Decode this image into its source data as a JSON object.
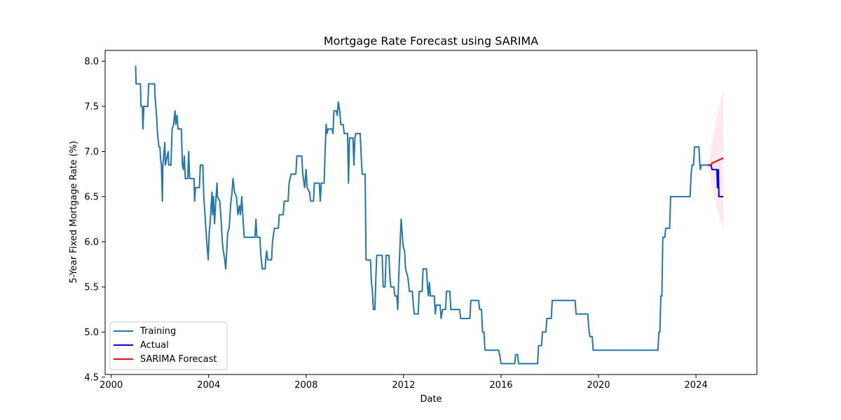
{
  "chart_data": {
    "type": "line",
    "title": "Mortgage Rate Forecast using SARIMA",
    "xlabel": "Date",
    "ylabel": "5-Year Fixed Mortgage Rate (%)",
    "xlim": [
      1999.75,
      2026.5
    ],
    "ylim": [
      4.53,
      8.12
    ],
    "x_ticks": [
      2000,
      2004,
      2008,
      2012,
      2016,
      2020,
      2024
    ],
    "y_ticks": [
      4.5,
      5.0,
      5.5,
      6.0,
      6.5,
      7.0,
      7.5,
      8.0
    ],
    "grid": false,
    "legend_position": "lower-left",
    "series": [
      {
        "name": "Training",
        "color": "#1f77b4",
        "points": [
          [
            2001.0,
            7.95
          ],
          [
            2001.02,
            7.75
          ],
          [
            2001.2,
            7.75
          ],
          [
            2001.22,
            7.5
          ],
          [
            2001.28,
            7.5
          ],
          [
            2001.3,
            7.25
          ],
          [
            2001.34,
            7.5
          ],
          [
            2001.5,
            7.5
          ],
          [
            2001.54,
            7.75
          ],
          [
            2001.78,
            7.75
          ],
          [
            2001.8,
            7.6
          ],
          [
            2001.86,
            7.4
          ],
          [
            2001.9,
            7.2
          ],
          [
            2001.96,
            7.05
          ],
          [
            2002.0,
            7.05
          ],
          [
            2002.03,
            6.9
          ],
          [
            2002.06,
            6.85
          ],
          [
            2002.1,
            6.45
          ],
          [
            2002.12,
            6.85
          ],
          [
            2002.2,
            7.1
          ],
          [
            2002.22,
            6.85
          ],
          [
            2002.34,
            7.0
          ],
          [
            2002.36,
            6.85
          ],
          [
            2002.45,
            6.85
          ],
          [
            2002.5,
            7.25
          ],
          [
            2002.56,
            7.3
          ],
          [
            2002.62,
            7.45
          ],
          [
            2002.65,
            7.3
          ],
          [
            2002.7,
            7.4
          ],
          [
            2002.74,
            7.25
          ],
          [
            2002.88,
            7.25
          ],
          [
            2002.92,
            6.85
          ],
          [
            2002.96,
            6.8
          ],
          [
            2003.0,
            6.95
          ],
          [
            2003.04,
            6.7
          ],
          [
            2003.14,
            6.7
          ],
          [
            2003.18,
            7.0
          ],
          [
            2003.22,
            6.7
          ],
          [
            2003.4,
            6.7
          ],
          [
            2003.42,
            6.45
          ],
          [
            2003.46,
            6.6
          ],
          [
            2003.62,
            6.6
          ],
          [
            2003.66,
            6.85
          ],
          [
            2003.76,
            6.85
          ],
          [
            2003.8,
            6.5
          ],
          [
            2003.86,
            6.25
          ],
          [
            2003.92,
            6.0
          ],
          [
            2003.98,
            5.8
          ],
          [
            2004.02,
            6.1
          ],
          [
            2004.06,
            6.2
          ],
          [
            2004.1,
            6.4
          ],
          [
            2004.14,
            6.55
          ],
          [
            2004.16,
            6.3
          ],
          [
            2004.2,
            6.5
          ],
          [
            2004.24,
            6.2
          ],
          [
            2004.28,
            6.4
          ],
          [
            2004.34,
            6.65
          ],
          [
            2004.36,
            6.5
          ],
          [
            2004.46,
            6.45
          ],
          [
            2004.52,
            6.2
          ],
          [
            2004.56,
            6.0
          ],
          [
            2004.6,
            5.9
          ],
          [
            2004.66,
            5.8
          ],
          [
            2004.7,
            5.7
          ],
          [
            2004.74,
            5.9
          ],
          [
            2004.78,
            6.1
          ],
          [
            2004.84,
            6.15
          ],
          [
            2004.9,
            6.4
          ],
          [
            2004.96,
            6.55
          ],
          [
            2005.0,
            6.7
          ],
          [
            2005.06,
            6.55
          ],
          [
            2005.14,
            6.5
          ],
          [
            2005.2,
            6.3
          ],
          [
            2005.26,
            6.4
          ],
          [
            2005.3,
            6.3
          ],
          [
            2005.36,
            6.5
          ],
          [
            2005.4,
            6.3
          ],
          [
            2005.46,
            6.05
          ],
          [
            2005.9,
            6.05
          ],
          [
            2005.94,
            6.25
          ],
          [
            2005.98,
            6.05
          ],
          [
            2006.1,
            6.05
          ],
          [
            2006.14,
            5.85
          ],
          [
            2006.2,
            5.7
          ],
          [
            2006.32,
            5.7
          ],
          [
            2006.34,
            5.8
          ],
          [
            2006.38,
            5.9
          ],
          [
            2006.42,
            5.8
          ],
          [
            2006.58,
            5.8
          ],
          [
            2006.62,
            6.0
          ],
          [
            2006.7,
            6.15
          ],
          [
            2006.86,
            6.15
          ],
          [
            2006.9,
            6.3
          ],
          [
            2007.06,
            6.3
          ],
          [
            2007.1,
            6.45
          ],
          [
            2007.26,
            6.45
          ],
          [
            2007.3,
            6.65
          ],
          [
            2007.38,
            6.75
          ],
          [
            2007.58,
            6.75
          ],
          [
            2007.62,
            6.95
          ],
          [
            2007.82,
            6.95
          ],
          [
            2007.86,
            6.75
          ],
          [
            2007.94,
            6.6
          ],
          [
            2008.0,
            6.8
          ],
          [
            2008.04,
            6.6
          ],
          [
            2008.14,
            6.55
          ],
          [
            2008.18,
            6.45
          ],
          [
            2008.3,
            6.45
          ],
          [
            2008.34,
            6.65
          ],
          [
            2008.54,
            6.65
          ],
          [
            2008.58,
            6.45
          ],
          [
            2008.62,
            6.65
          ],
          [
            2008.74,
            6.65
          ],
          [
            2008.78,
            7.0
          ],
          [
            2008.82,
            7.3
          ],
          [
            2008.86,
            7.2
          ],
          [
            2008.9,
            7.25
          ],
          [
            2009.06,
            7.25
          ],
          [
            2009.1,
            7.2
          ],
          [
            2009.14,
            7.45
          ],
          [
            2009.24,
            7.45
          ],
          [
            2009.28,
            7.4
          ],
          [
            2009.32,
            7.55
          ],
          [
            2009.38,
            7.45
          ],
          [
            2009.42,
            7.3
          ],
          [
            2009.52,
            7.3
          ],
          [
            2009.56,
            7.2
          ],
          [
            2009.7,
            7.2
          ],
          [
            2009.74,
            6.65
          ],
          [
            2009.78,
            7.15
          ],
          [
            2009.92,
            7.15
          ],
          [
            2009.96,
            6.85
          ],
          [
            2010.0,
            7.15
          ],
          [
            2010.04,
            7.2
          ],
          [
            2010.22,
            7.2
          ],
          [
            2010.26,
            6.95
          ],
          [
            2010.3,
            6.75
          ],
          [
            2010.42,
            6.75
          ],
          [
            2010.46,
            5.8
          ],
          [
            2010.64,
            5.8
          ],
          [
            2010.68,
            5.55
          ],
          [
            2010.72,
            5.45
          ],
          [
            2010.76,
            5.25
          ],
          [
            2010.82,
            5.25
          ],
          [
            2010.86,
            5.6
          ],
          [
            2010.9,
            5.85
          ],
          [
            2011.12,
            5.85
          ],
          [
            2011.16,
            5.5
          ],
          [
            2011.24,
            5.5
          ],
          [
            2011.28,
            5.85
          ],
          [
            2011.4,
            5.85
          ],
          [
            2011.44,
            5.6
          ],
          [
            2011.48,
            5.5
          ],
          [
            2011.6,
            5.5
          ],
          [
            2011.64,
            5.4
          ],
          [
            2011.72,
            5.4
          ],
          [
            2011.76,
            5.25
          ],
          [
            2011.8,
            5.6
          ],
          [
            2011.86,
            6.0
          ],
          [
            2011.9,
            6.25
          ],
          [
            2011.94,
            6.1
          ],
          [
            2011.98,
            5.95
          ],
          [
            2012.04,
            5.9
          ],
          [
            2012.08,
            5.7
          ],
          [
            2012.18,
            5.6
          ],
          [
            2012.24,
            5.45
          ],
          [
            2012.36,
            5.45
          ],
          [
            2012.4,
            5.3
          ],
          [
            2012.44,
            5.2
          ],
          [
            2012.6,
            5.2
          ],
          [
            2012.64,
            5.45
          ],
          [
            2012.76,
            5.45
          ],
          [
            2012.8,
            5.7
          ],
          [
            2012.94,
            5.7
          ],
          [
            2012.98,
            5.5
          ],
          [
            2013.02,
            5.4
          ],
          [
            2013.06,
            5.55
          ],
          [
            2013.1,
            5.4
          ],
          [
            2013.26,
            5.4
          ],
          [
            2013.3,
            5.2
          ],
          [
            2013.34,
            5.3
          ],
          [
            2013.5,
            5.3
          ],
          [
            2013.54,
            5.15
          ],
          [
            2013.6,
            5.25
          ],
          [
            2013.72,
            5.25
          ],
          [
            2013.76,
            5.45
          ],
          [
            2013.9,
            5.45
          ],
          [
            2013.94,
            5.25
          ],
          [
            2014.0,
            5.25
          ],
          [
            2014.3,
            5.25
          ],
          [
            2014.34,
            5.15
          ],
          [
            2014.72,
            5.15
          ],
          [
            2014.76,
            5.35
          ],
          [
            2015.08,
            5.35
          ],
          [
            2015.12,
            5.25
          ],
          [
            2015.2,
            5.25
          ],
          [
            2015.24,
            5.0
          ],
          [
            2015.3,
            5.0
          ],
          [
            2015.34,
            4.8
          ],
          [
            2015.9,
            4.8
          ],
          [
            2015.94,
            4.75
          ],
          [
            2016.0,
            4.65
          ],
          [
            2016.56,
            4.65
          ],
          [
            2016.6,
            4.75
          ],
          [
            2016.68,
            4.75
          ],
          [
            2016.72,
            4.65
          ],
          [
            2017.5,
            4.65
          ],
          [
            2017.54,
            4.85
          ],
          [
            2017.66,
            4.85
          ],
          [
            2017.7,
            5.0
          ],
          [
            2017.84,
            5.0
          ],
          [
            2017.88,
            5.15
          ],
          [
            2018.06,
            5.15
          ],
          [
            2018.1,
            5.35
          ],
          [
            2019.04,
            5.35
          ],
          [
            2019.08,
            5.2
          ],
          [
            2019.56,
            5.2
          ],
          [
            2019.6,
            5.05
          ],
          [
            2019.64,
            4.95
          ],
          [
            2019.74,
            4.95
          ],
          [
            2019.78,
            4.8
          ],
          [
            2020.0,
            4.8
          ],
          [
            2022.44,
            4.8
          ],
          [
            2022.48,
            5.0
          ],
          [
            2022.52,
            5.0
          ],
          [
            2022.56,
            5.4
          ],
          [
            2022.6,
            5.4
          ],
          [
            2022.64,
            6.05
          ],
          [
            2022.72,
            6.05
          ],
          [
            2022.76,
            6.15
          ],
          [
            2022.92,
            6.15
          ],
          [
            2022.96,
            6.5
          ],
          [
            2023.76,
            6.5
          ],
          [
            2023.8,
            6.75
          ],
          [
            2023.84,
            6.85
          ],
          [
            2023.9,
            6.85
          ],
          [
            2023.94,
            7.05
          ],
          [
            2024.12,
            7.05
          ],
          [
            2024.16,
            6.85
          ],
          [
            2024.18,
            6.8
          ],
          [
            2024.22,
            6.85
          ],
          [
            2024.4,
            6.85
          ],
          [
            2024.44,
            6.85
          ],
          [
            2024.5,
            6.85
          ]
        ]
      },
      {
        "name": "Actual",
        "color": "#0000ff",
        "points": [
          [
            2024.5,
            6.85
          ],
          [
            2024.62,
            6.85
          ],
          [
            2024.66,
            6.8
          ],
          [
            2024.86,
            6.8
          ],
          [
            2024.88,
            6.6
          ],
          [
            2024.9,
            6.6
          ],
          [
            2024.92,
            6.8
          ],
          [
            2024.94,
            6.5
          ],
          [
            2025.12,
            6.5
          ]
        ]
      },
      {
        "name": "SARIMA Forecast",
        "color": "#ff0000",
        "points": [
          [
            2024.5,
            6.84
          ],
          [
            2024.6,
            6.85
          ],
          [
            2024.66,
            6.87
          ],
          [
            2024.74,
            6.88
          ],
          [
            2024.82,
            6.89
          ],
          [
            2024.9,
            6.9
          ],
          [
            2024.98,
            6.91
          ],
          [
            2025.06,
            6.92
          ],
          [
            2025.12,
            6.93
          ]
        ]
      }
    ],
    "confidence_interval": {
      "color": "#ffc0cb",
      "opacity": 0.35,
      "lower": [
        [
          2024.5,
          6.84
        ],
        [
          2024.62,
          6.65
        ],
        [
          2024.74,
          6.5
        ],
        [
          2024.86,
          6.38
        ],
        [
          2024.98,
          6.26
        ],
        [
          2025.12,
          6.15
        ]
      ],
      "upper": [
        [
          2024.5,
          6.84
        ],
        [
          2024.62,
          7.04
        ],
        [
          2024.74,
          7.22
        ],
        [
          2024.86,
          7.38
        ],
        [
          2024.98,
          7.53
        ],
        [
          2025.12,
          7.68
        ]
      ]
    }
  }
}
